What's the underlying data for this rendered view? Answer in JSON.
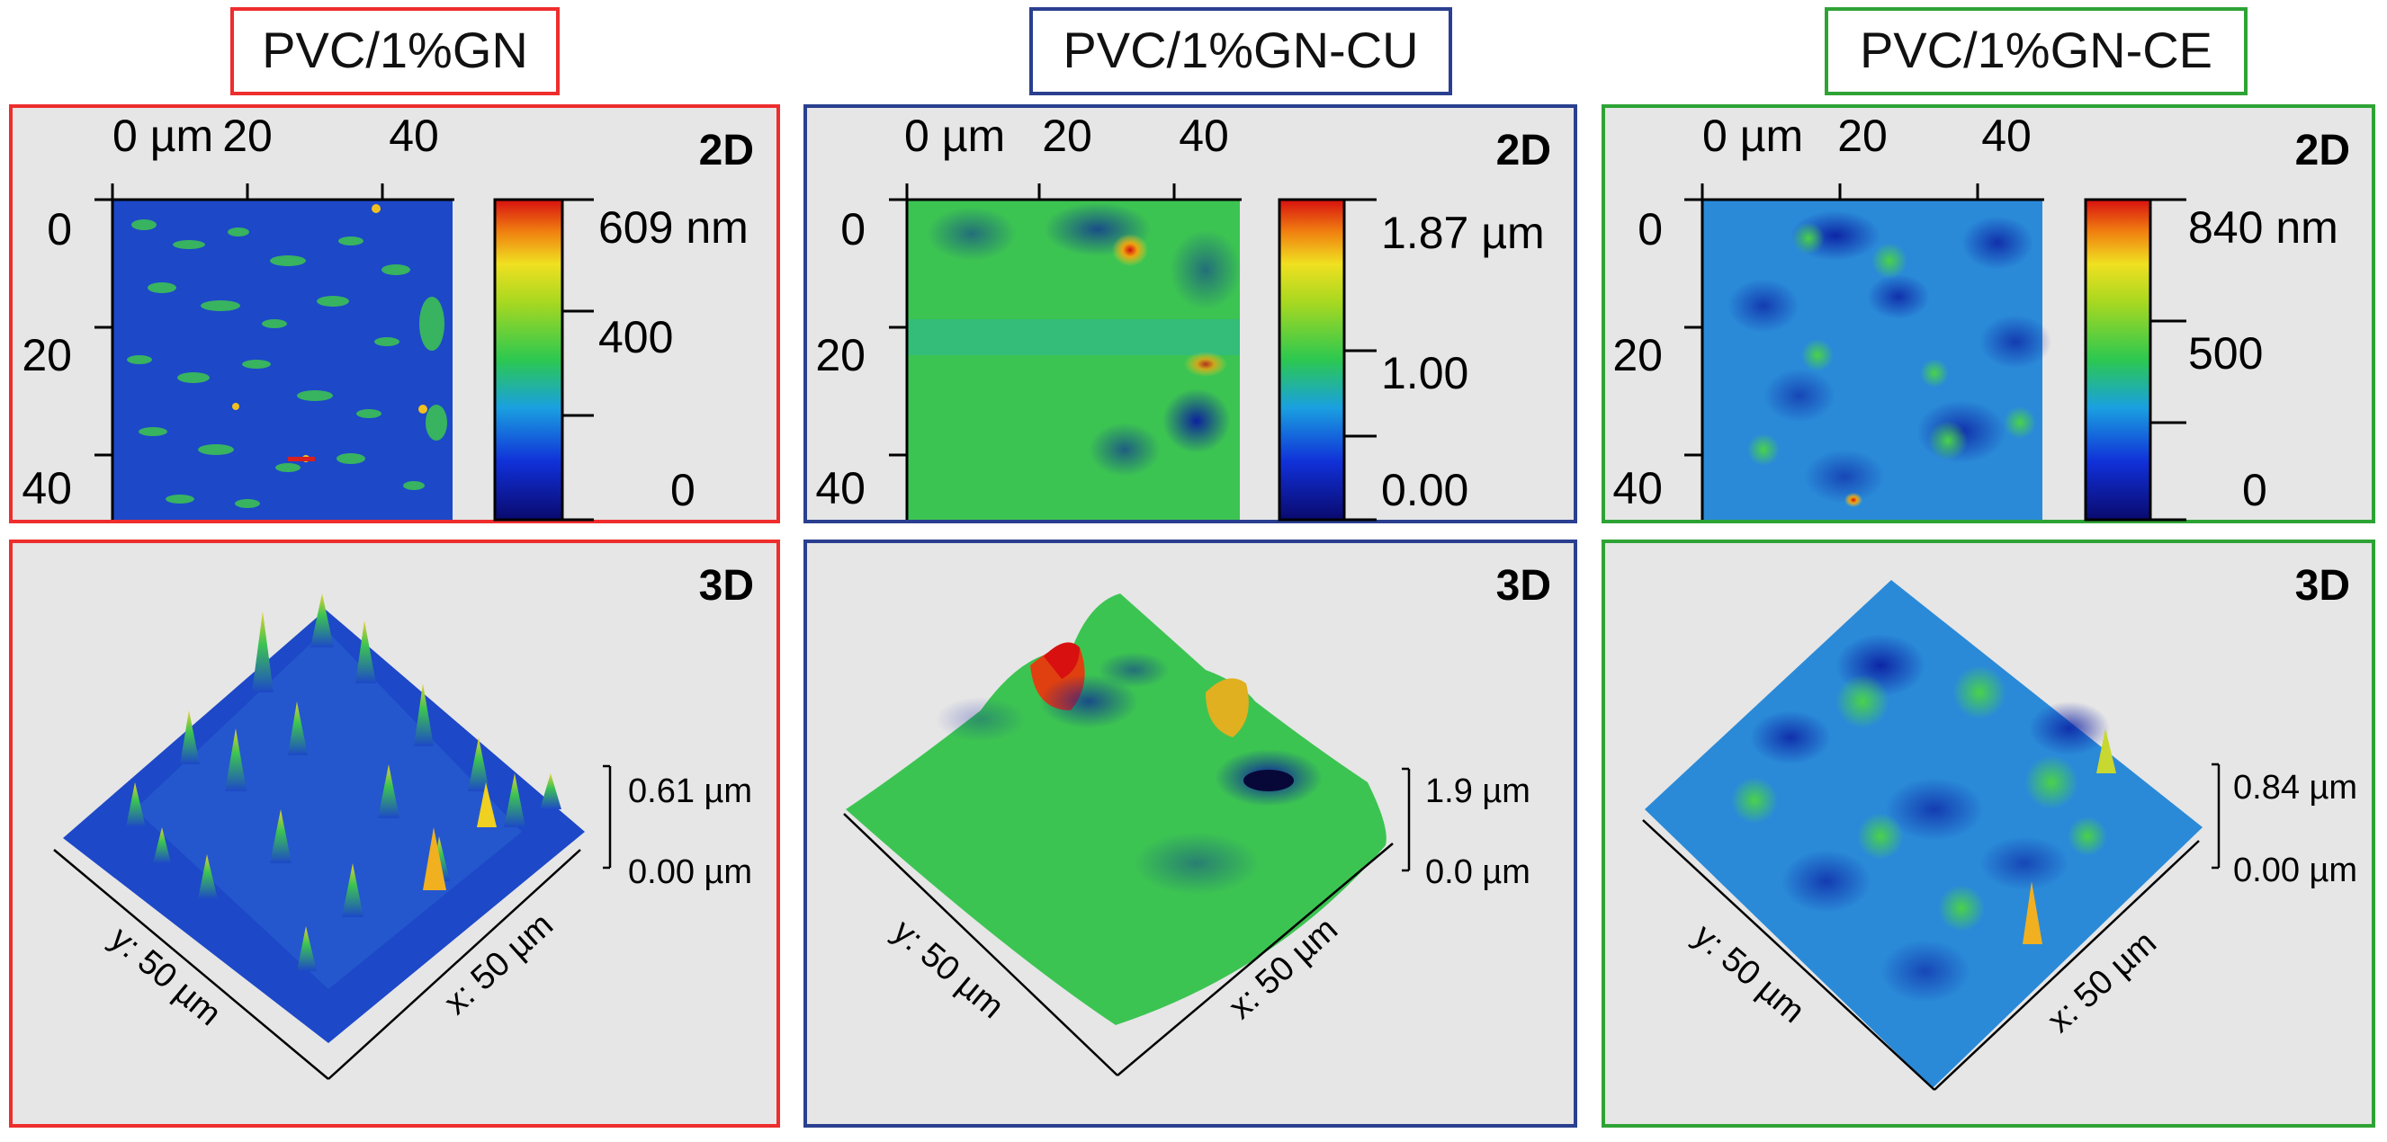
{
  "colors": {
    "red": "#ee2d2d",
    "blue": "#2a3f8f",
    "green": "#2ea335",
    "panel_bg": "#e6e6e6",
    "surface_base": "#1d48c8",
    "surface_high": "#3cc452",
    "peak": "#e02010"
  },
  "panels": [
    {
      "title": "PVC/1%GN",
      "mode_2d": "2D",
      "mode_3d": "3D",
      "x_ticks": [
        "0 µm",
        "20",
        "40"
      ],
      "y_ticks": [
        "0",
        "20",
        "40"
      ],
      "colorbar": {
        "top": "609 nm",
        "mid": "400",
        "bottom": "0"
      },
      "z_scale": {
        "top": "0.61 µm",
        "bottom": "0.00 µm"
      },
      "axis_x": "x: 50 µm",
      "axis_y": "y: 50 µm"
    },
    {
      "title": "PVC/1%GN-CU",
      "mode_2d": "2D",
      "mode_3d": "3D",
      "x_ticks": [
        "0 µm",
        "20",
        "40"
      ],
      "y_ticks": [
        "0",
        "20",
        "40"
      ],
      "colorbar": {
        "top": "1.87 µm",
        "mid": "1.00",
        "bottom": "0.00"
      },
      "z_scale": {
        "top": "1.9 µm",
        "bottom": "0.0 µm"
      },
      "axis_x": "x: 50 µm",
      "axis_y": "y: 50 µm"
    },
    {
      "title": "PVC/1%GN-CE",
      "mode_2d": "2D",
      "mode_3d": "3D",
      "x_ticks": [
        "0 µm",
        "20",
        "40"
      ],
      "y_ticks": [
        "0",
        "20",
        "40"
      ],
      "colorbar": {
        "top": "840 nm",
        "mid": "500",
        "bottom": "0"
      },
      "z_scale": {
        "top": "0.84 µm",
        "bottom": "0.00 µm"
      },
      "axis_x": "x: 50 µm",
      "axis_y": "y: 50 µm"
    }
  ]
}
